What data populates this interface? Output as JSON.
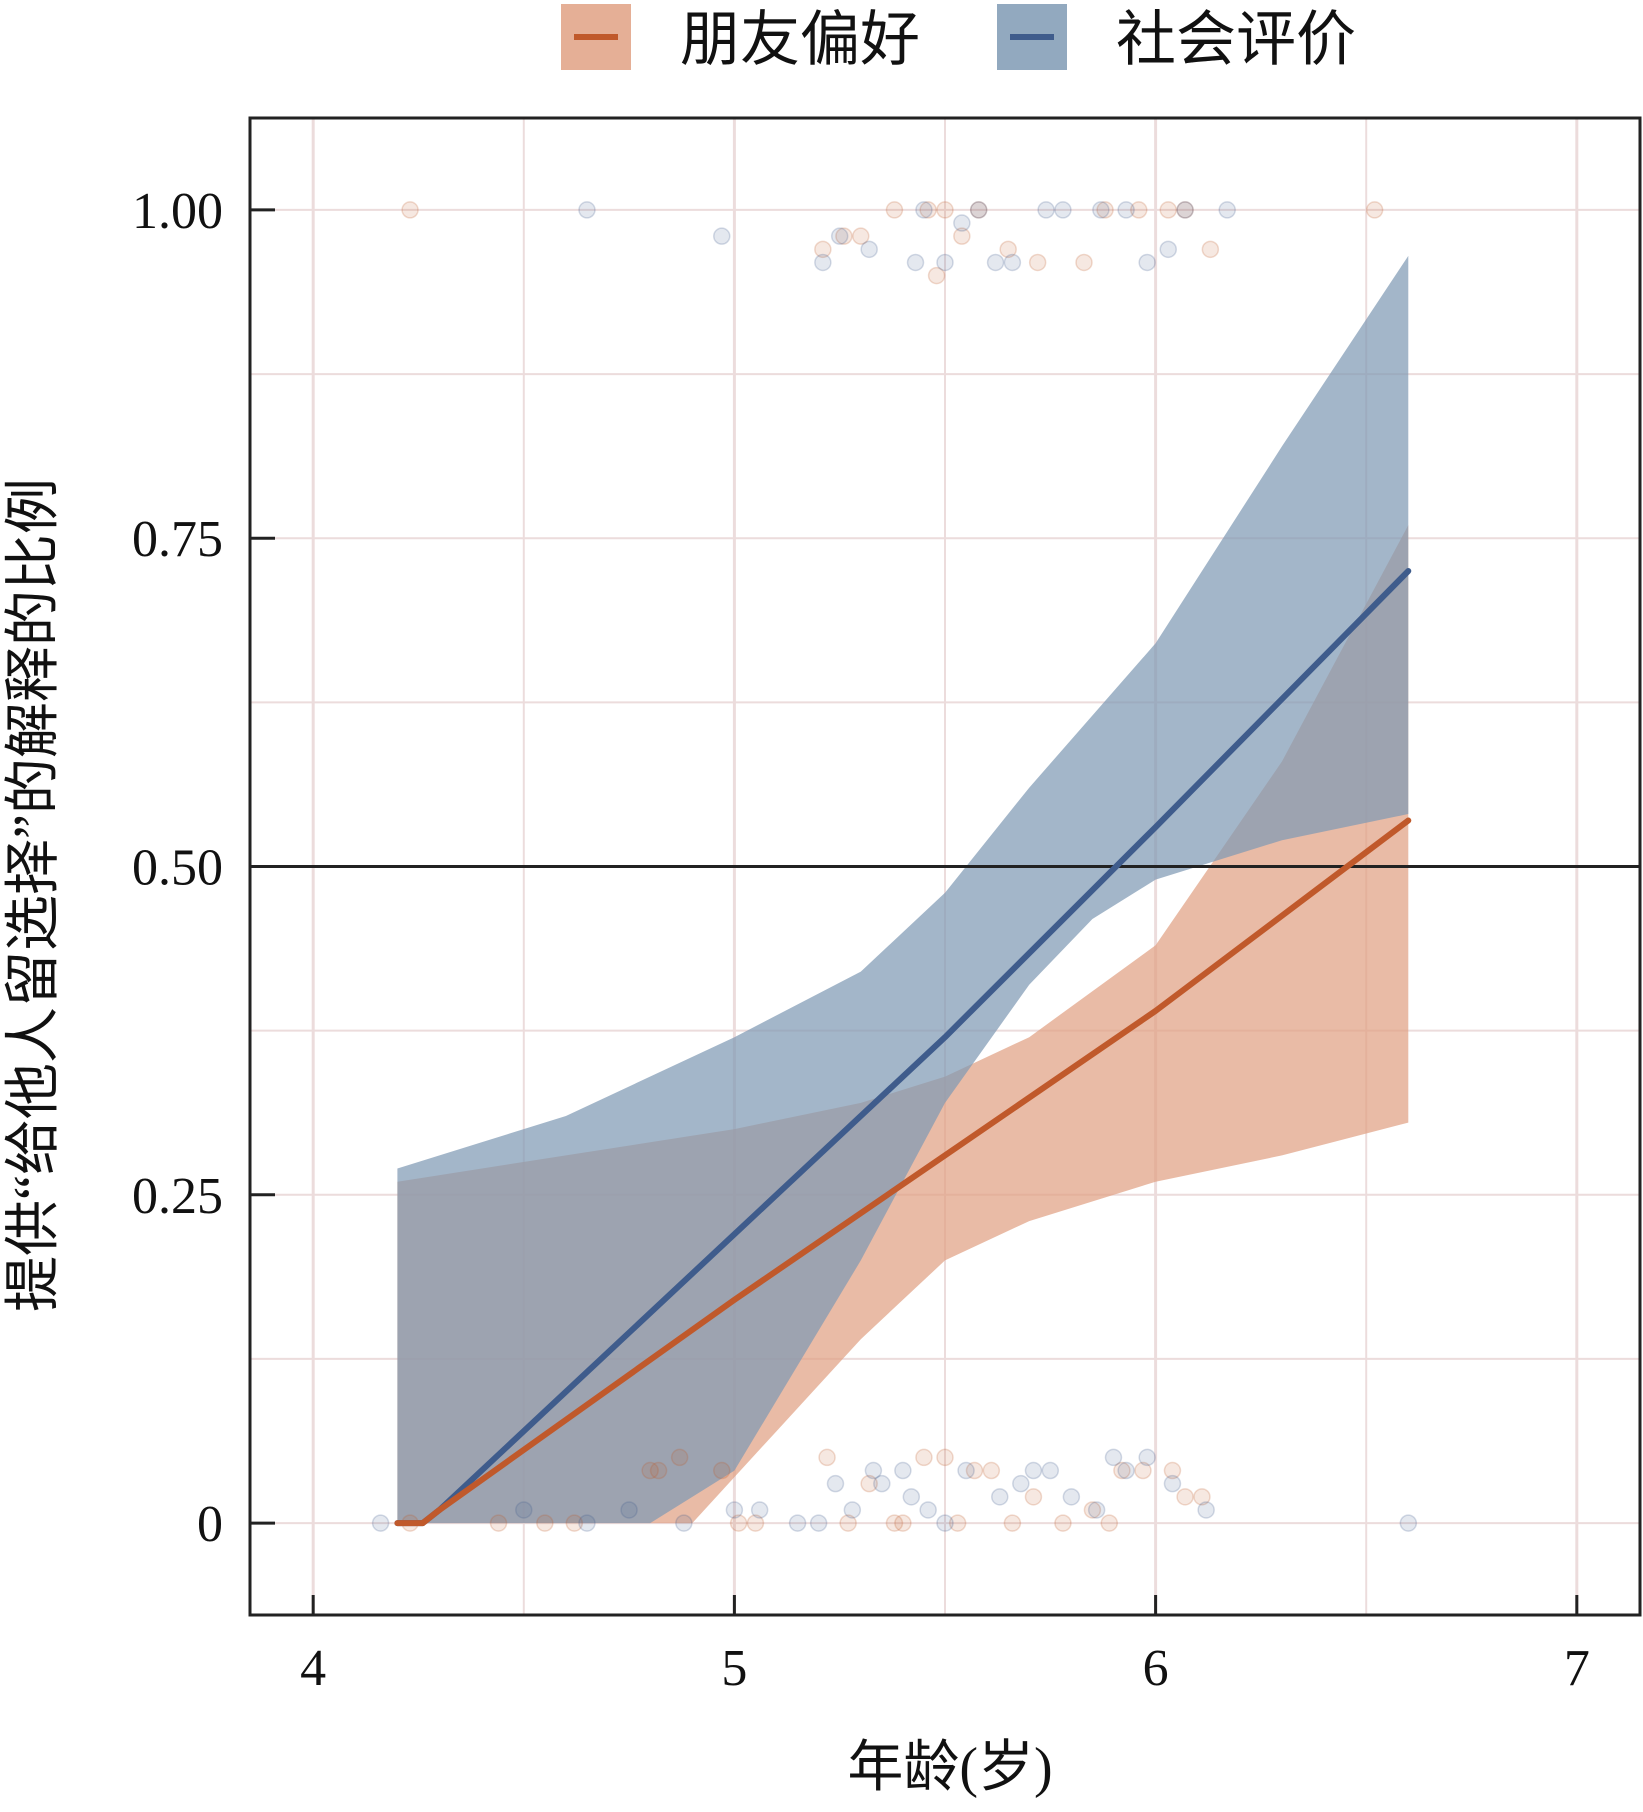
{
  "chart_data": {
    "type": "line",
    "title": "",
    "xlabel": "年龄(岁)",
    "ylabel": "提供“给他人留选择”的解释的比例",
    "xlim": [
      3.85,
      7.15
    ],
    "ylim": [
      -0.07,
      1.07
    ],
    "x_ticks": [
      4,
      5,
      6,
      7
    ],
    "x_tick_labels": [
      "4",
      "5",
      "6",
      "7"
    ],
    "y_ticks": [
      0,
      0.25,
      0.5,
      0.75,
      1.0
    ],
    "y_tick_labels": [
      "0",
      "0.25",
      "0.50",
      "0.75",
      "1.00"
    ],
    "grid": true,
    "reference_line_y": 0.5,
    "legend_position": "top-center",
    "series": [
      {
        "name": "朋友偏好",
        "color": "#c0592b",
        "band_color": "#e0a184",
        "line": {
          "x": [
            4.2,
            4.26,
            4.3,
            5.0,
            5.5,
            6.0,
            6.6
          ],
          "y": [
            0,
            0,
            0.01,
            0.17,
            0.28,
            0.39,
            0.535
          ]
        },
        "ci_lower": {
          "x": [
            4.2,
            4.9,
            5.1,
            5.3,
            5.5,
            5.7,
            6.0,
            6.3,
            6.6
          ],
          "y": [
            0,
            0,
            0.07,
            0.14,
            0.2,
            0.23,
            0.26,
            0.28,
            0.305
          ]
        },
        "ci_upper": {
          "x": [
            4.2,
            4.6,
            5.0,
            5.3,
            5.5,
            5.7,
            6.0,
            6.3,
            6.6
          ],
          "y": [
            0.26,
            0.28,
            0.3,
            0.32,
            0.34,
            0.37,
            0.44,
            0.58,
            0.76
          ]
        },
        "points": {
          "x": [
            4.23,
            4.44,
            4.55,
            4.62,
            4.8,
            4.82,
            4.87,
            4.97,
            5.01,
            5.05,
            5.22,
            5.27,
            5.32,
            5.38,
            5.4,
            5.45,
            5.5,
            5.53,
            5.57,
            5.61,
            5.66,
            5.71,
            5.78,
            5.85,
            5.89,
            5.92,
            5.97,
            6.04,
            6.07,
            6.11,
            4.23,
            5.21,
            5.26,
            5.3,
            5.38,
            5.46,
            5.48,
            5.5,
            5.54,
            5.58,
            5.65,
            5.72,
            5.83,
            5.88,
            5.96,
            6.03,
            6.07,
            6.13,
            6.52
          ],
          "y": [
            0,
            0,
            0,
            0,
            0.04,
            0.04,
            0.05,
            0.04,
            0,
            0,
            0.05,
            0,
            0.03,
            0,
            0,
            0.05,
            0.05,
            0,
            0.04,
            0.04,
            0,
            0.02,
            0,
            0.01,
            0,
            0.04,
            0.04,
            0.04,
            0.02,
            0.02,
            1,
            0.97,
            0.98,
            0.98,
            1,
            1,
            0.95,
            1,
            0.98,
            1,
            0.97,
            0.96,
            0.96,
            1,
            1,
            1,
            1,
            0.97,
            1
          ]
        }
      },
      {
        "name": "社会评价",
        "color": "#3f5c8c",
        "band_color": "#7f9ab4",
        "line": {
          "x": [
            4.2,
            4.26,
            4.3,
            5.0,
            5.5,
            6.0,
            6.6
          ],
          "y": [
            0,
            0,
            0.01,
            0.22,
            0.37,
            0.53,
            0.725
          ]
        },
        "ci_lower": {
          "x": [
            4.2,
            4.8,
            5.0,
            5.3,
            5.5,
            5.7,
            5.85,
            6.0,
            6.3,
            6.6
          ],
          "y": [
            0,
            0,
            0.04,
            0.2,
            0.32,
            0.41,
            0.46,
            0.49,
            0.52,
            0.54
          ]
        },
        "ci_upper": {
          "x": [
            4.2,
            4.6,
            5.0,
            5.3,
            5.5,
            5.7,
            6.0,
            6.3,
            6.6
          ],
          "y": [
            0.27,
            0.31,
            0.37,
            0.42,
            0.48,
            0.56,
            0.67,
            0.82,
            0.965
          ]
        },
        "points": {
          "x": [
            4.16,
            4.5,
            4.65,
            4.75,
            4.88,
            5.0,
            5.06,
            5.15,
            5.2,
            5.24,
            5.28,
            5.33,
            5.35,
            5.4,
            5.42,
            5.46,
            5.5,
            5.55,
            5.63,
            5.68,
            5.71,
            5.75,
            5.8,
            5.86,
            5.9,
            5.93,
            5.98,
            6.04,
            6.12,
            6.6,
            4.65,
            4.97,
            5.21,
            5.25,
            5.32,
            5.43,
            5.45,
            5.5,
            5.54,
            5.58,
            5.62,
            5.66,
            5.74,
            5.78,
            5.87,
            5.93,
            5.98,
            6.03,
            6.07,
            6.17
          ],
          "y": [
            0,
            0.01,
            0,
            0.01,
            0,
            0.01,
            0.01,
            0,
            0,
            0.03,
            0.01,
            0.04,
            0.03,
            0.04,
            0.02,
            0.01,
            0,
            0.04,
            0.02,
            0.03,
            0.04,
            0.04,
            0.02,
            0.01,
            0.05,
            0.04,
            0.05,
            0.03,
            0.01,
            0,
            1,
            0.98,
            0.96,
            0.98,
            0.97,
            0.96,
            1,
            0.96,
            0.99,
            1,
            0.96,
            0.96,
            1,
            1,
            1,
            1,
            0.96,
            0.97,
            1,
            1
          ]
        }
      }
    ]
  }
}
